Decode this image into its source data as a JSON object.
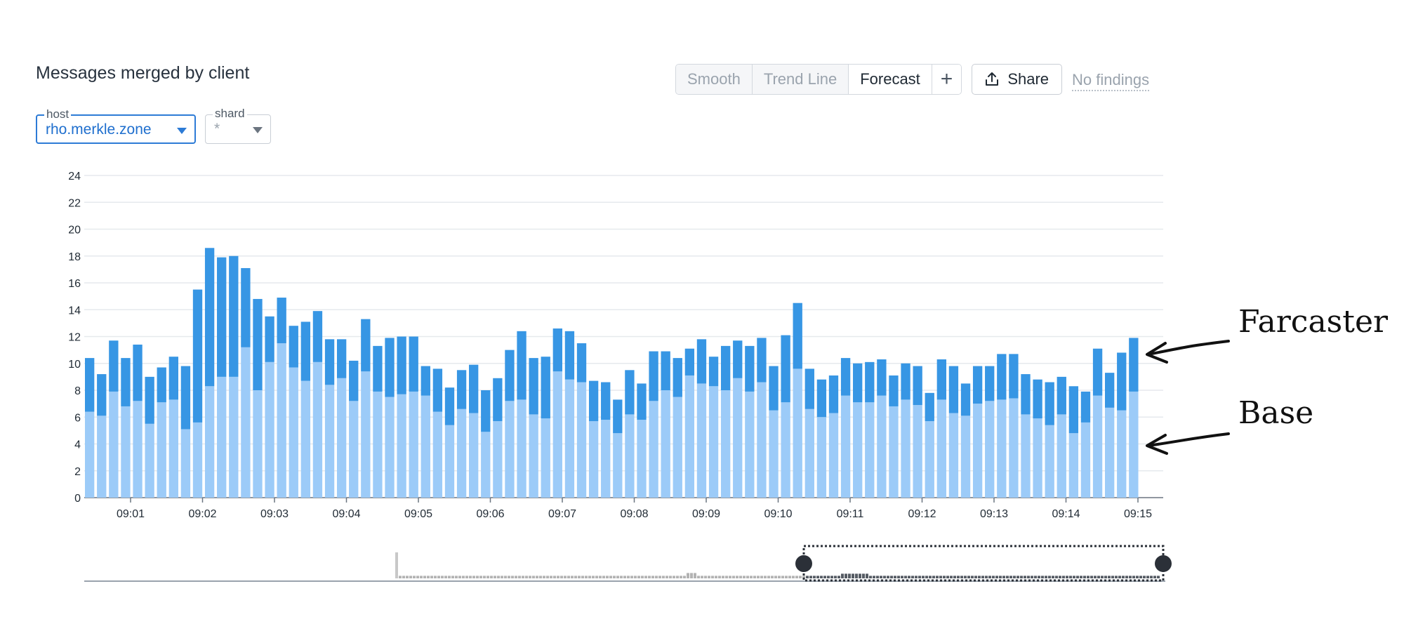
{
  "header": {
    "title": "Messages merged by client"
  },
  "toolbar": {
    "smooth": "Smooth",
    "trend_line": "Trend Line",
    "forecast": "Forecast",
    "add": "+",
    "share": "Share",
    "findings": "No findings"
  },
  "filters": {
    "host": {
      "label": "host",
      "value": "rho.merkle.zone"
    },
    "shard": {
      "label": "shard",
      "value": "*"
    }
  },
  "annotations": {
    "top": "Farcaster",
    "bottom": "Base"
  },
  "colors": {
    "base": "#9ccbf8",
    "farcaster": "#3796e4",
    "accent": "#2d7bd6",
    "overview": "#b3b3b3"
  },
  "chart_data": {
    "type": "bar",
    "stacked": true,
    "ylim": [
      0,
      24
    ],
    "yticks": [
      0,
      2,
      4,
      6,
      8,
      10,
      12,
      14,
      16,
      18,
      20,
      22,
      24
    ],
    "xticks": [
      "09:01",
      "09:02",
      "09:03",
      "09:04",
      "09:05",
      "09:06",
      "09:07",
      "09:08",
      "09:09",
      "09:10",
      "09:11",
      "09:12",
      "09:13",
      "09:14",
      "09:15"
    ],
    "grid": true,
    "series": [
      {
        "name": "Base",
        "values": [
          6.4,
          6.1,
          7.9,
          6.8,
          7.2,
          5.5,
          7.1,
          7.3,
          5.1,
          5.6,
          8.3,
          9.0,
          9.0,
          11.2,
          8.0,
          10.1,
          11.5,
          9.7,
          8.7,
          10.1,
          8.4,
          8.9,
          7.2,
          9.4,
          7.9,
          7.5,
          7.7,
          7.9,
          7.6,
          6.4,
          5.4,
          6.6,
          6.3,
          4.9,
          5.7,
          7.2,
          7.3,
          6.2,
          5.9,
          9.4,
          8.8,
          8.6,
          5.7,
          5.8,
          4.8,
          6.2,
          5.8,
          7.2,
          8.0,
          7.5,
          9.1,
          8.5,
          8.3,
          8.0,
          8.9,
          7.9,
          8.6,
          6.5,
          7.1,
          9.6,
          6.6,
          6.0,
          6.3,
          7.6,
          7.1,
          7.1,
          7.6,
          6.8,
          7.3,
          6.9,
          5.7,
          7.3,
          6.3,
          6.1,
          7.0,
          7.2,
          7.3,
          7.4,
          6.2,
          5.9,
          5.4,
          6.2,
          4.8,
          5.6,
          7.6,
          6.7,
          6.5,
          7.9
        ]
      },
      {
        "name": "Farcaster",
        "values": [
          4.0,
          3.1,
          3.8,
          3.6,
          4.2,
          3.5,
          2.6,
          3.2,
          4.7,
          9.9,
          10.3,
          8.9,
          9.0,
          5.9,
          6.8,
          3.4,
          3.4,
          3.1,
          4.4,
          3.8,
          3.4,
          2.9,
          3.0,
          3.9,
          3.4,
          4.4,
          4.3,
          4.1,
          2.2,
          3.2,
          2.8,
          2.9,
          3.6,
          3.1,
          3.2,
          3.8,
          5.1,
          4.2,
          4.6,
          3.2,
          3.6,
          2.9,
          3.0,
          2.8,
          2.5,
          3.3,
          2.7,
          3.7,
          2.9,
          2.9,
          2.0,
          3.3,
          2.2,
          3.3,
          2.8,
          3.4,
          3.3,
          3.3,
          5.0,
          4.9,
          3.0,
          2.8,
          2.8,
          2.8,
          2.9,
          3.0,
          2.7,
          2.3,
          2.7,
          2.9,
          2.1,
          3.0,
          3.5,
          2.4,
          2.8,
          2.6,
          3.4,
          3.3,
          3.0,
          2.9,
          3.2,
          2.8,
          3.5,
          2.3,
          3.5,
          2.6,
          4.3,
          4.0
        ]
      }
    ]
  }
}
